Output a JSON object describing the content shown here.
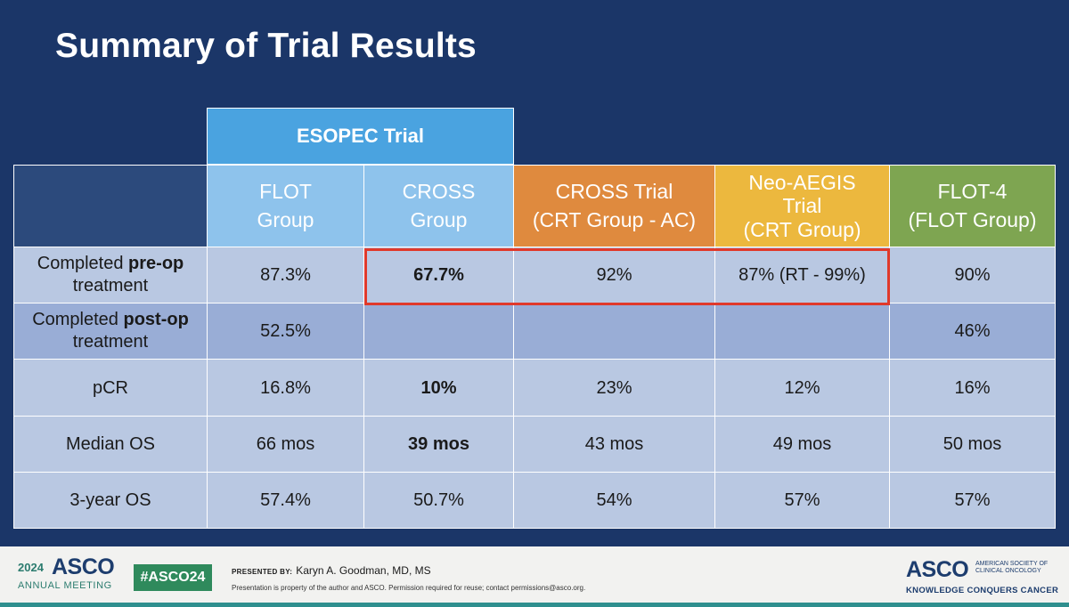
{
  "title": "Summary of Trial Results",
  "table": {
    "group_header": "ESOPEC Trial",
    "columns": [
      {
        "line1": "FLOT",
        "line2": "Group",
        "line3": ""
      },
      {
        "line1": "CROSS",
        "line2": "Group",
        "line3": ""
      },
      {
        "line1": "CROSS Trial",
        "line2": "(CRT Group - AC)",
        "line3": ""
      },
      {
        "line1": "Neo-AEGIS",
        "line2": "Trial",
        "line3": "(CRT Group)"
      },
      {
        "line1": "FLOT-4",
        "line2": "(FLOT Group)",
        "line3": ""
      }
    ],
    "rows": [
      {
        "label_pre": "Completed ",
        "label_bold": "pre-op",
        "label_post": "treatment",
        "cells": [
          "87.3%",
          "67.7%",
          "92%",
          "87% (RT - 99%)",
          "90%"
        ]
      },
      {
        "label_pre": "Completed ",
        "label_bold": "post-op",
        "label_post": "treatment",
        "cells": [
          "52.5%",
          "",
          "",
          "",
          "46%"
        ]
      },
      {
        "label_pre": "pCR",
        "label_bold": "",
        "label_post": "",
        "cells": [
          "16.8%",
          "10%",
          "23%",
          "12%",
          "16%"
        ]
      },
      {
        "label_pre": "Median OS",
        "label_bold": "",
        "label_post": "",
        "cells": [
          "66 mos",
          "39 mos",
          "43 mos",
          "49 mos",
          "50 mos"
        ]
      },
      {
        "label_pre": "3-year OS",
        "label_bold": "",
        "label_post": "",
        "cells": [
          "57.4%",
          "50.7%",
          "54%",
          "57%",
          "57%"
        ]
      }
    ]
  },
  "colors": {
    "background": "#1b3668",
    "esopec_header": "#4aa3e0",
    "cross_trial_header": "#df8a3e",
    "neo_aegis_header": "#ecb83e",
    "flot4_header": "#7ea551",
    "highlight_box": "#e0392b"
  },
  "footer": {
    "year": "2024",
    "asco": "ASCO",
    "meeting": "ANNUAL MEETING",
    "hashtag": "#ASCO24",
    "presented_by": "PRESENTED BY:",
    "presenter": "Karyn A. Goodman, MD, MS",
    "notice": "Presentation is property of the author and ASCO. Permission required for reuse; contact permissions@asco.org.",
    "logo": "ASCO",
    "society_line1": "AMERICAN SOCIETY OF",
    "society_line2": "CLINICAL ONCOLOGY",
    "tagline": "KNOWLEDGE CONQUERS CANCER"
  }
}
